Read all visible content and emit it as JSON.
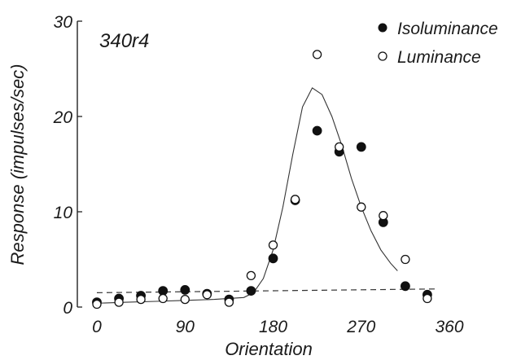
{
  "chart_data": {
    "type": "scatter",
    "title": "340r4",
    "xlabel": "Orientation",
    "ylabel": "Response (impulses/sec)",
    "xlim": [
      0,
      360
    ],
    "ylim": [
      0,
      30
    ],
    "xticks": [
      0,
      90,
      180,
      270,
      360
    ],
    "yticks": [
      0,
      10,
      20,
      30
    ],
    "grid": false,
    "legend_position": "top-right",
    "series": [
      {
        "name": "Isoluminance",
        "marker": "filled-circle",
        "color": "#111111",
        "points": [
          [
            0,
            0.5
          ],
          [
            22.5,
            0.9
          ],
          [
            45,
            1.2
          ],
          [
            67.5,
            1.7
          ],
          [
            90,
            1.8
          ],
          [
            112.5,
            1.4
          ],
          [
            135,
            0.8
          ],
          [
            157.5,
            1.7
          ],
          [
            180,
            5.1
          ],
          [
            202.5,
            11.2
          ],
          [
            225,
            18.5
          ],
          [
            247.5,
            16.3
          ],
          [
            270,
            16.8
          ],
          [
            292.5,
            8.9
          ],
          [
            315,
            2.2
          ],
          [
            337.5,
            1.3
          ]
        ]
      },
      {
        "name": "Luminance",
        "marker": "open-circle",
        "color": "#111111",
        "points": [
          [
            0,
            0.3
          ],
          [
            22.5,
            0.5
          ],
          [
            45,
            0.8
          ],
          [
            67.5,
            0.9
          ],
          [
            90,
            0.8
          ],
          [
            112.5,
            1.3
          ],
          [
            135,
            0.5
          ],
          [
            157.5,
            3.3
          ],
          [
            180,
            6.5
          ],
          [
            202.5,
            11.3
          ],
          [
            225,
            26.5
          ],
          [
            247.5,
            16.8
          ],
          [
            270,
            10.5
          ],
          [
            292.5,
            9.6
          ],
          [
            315,
            5.0
          ],
          [
            337.5,
            0.9
          ]
        ]
      }
    ],
    "fits": [
      {
        "style": "solid",
        "points": [
          [
            0,
            0.4
          ],
          [
            30,
            0.5
          ],
          [
            60,
            0.6
          ],
          [
            90,
            0.7
          ],
          [
            120,
            0.8
          ],
          [
            150,
            1.0
          ],
          [
            160,
            1.5
          ],
          [
            170,
            3.0
          ],
          [
            180,
            6.0
          ],
          [
            190,
            10.5
          ],
          [
            200,
            16.0
          ],
          [
            210,
            21.0
          ],
          [
            220,
            23.0
          ],
          [
            230,
            22.3
          ],
          [
            240,
            20.0
          ],
          [
            250,
            17.0
          ],
          [
            260,
            13.5
          ],
          [
            270,
            10.5
          ],
          [
            280,
            8.0
          ],
          [
            290,
            6.0
          ],
          [
            300,
            4.6
          ],
          [
            307,
            3.8
          ]
        ]
      },
      {
        "style": "dashed",
        "points": [
          [
            0,
            1.5
          ],
          [
            345,
            1.9
          ]
        ]
      }
    ]
  }
}
